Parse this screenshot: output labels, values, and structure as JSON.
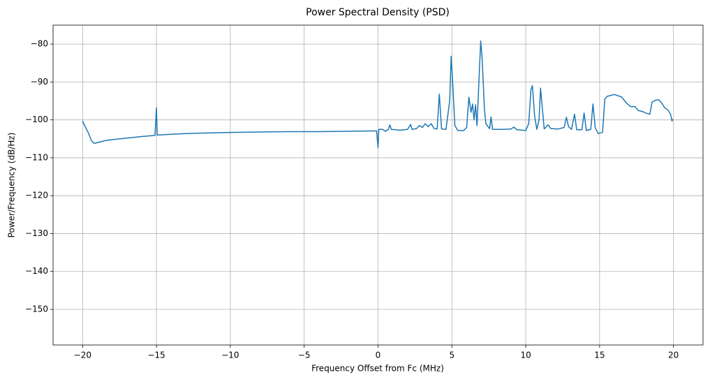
{
  "chart_data": {
    "type": "line",
    "title": "Power Spectral Density (PSD)",
    "x_label": "Frequency Offset from Fc (MHz)",
    "y_label": "Power/Frequency (dB/Hz)",
    "color": "#1f77b4",
    "grid": true,
    "xlim": [
      -22,
      22
    ],
    "ylim": [
      -159.4,
      -75.0
    ],
    "xticks": [
      {
        "value": -20,
        "label": "−20"
      },
      {
        "value": -15,
        "label": "−15"
      },
      {
        "value": -10,
        "label": "−10"
      },
      {
        "value": -5,
        "label": "−5"
      },
      0,
      5,
      10,
      15,
      20
    ],
    "yticks": [
      {
        "value": -80,
        "label": "−80"
      },
      {
        "value": -90,
        "label": "−90"
      },
      {
        "value": -100,
        "label": "−100"
      },
      {
        "value": -110,
        "label": "−110"
      },
      {
        "value": -120,
        "label": "−120"
      },
      {
        "value": -130,
        "label": "−130"
      },
      {
        "value": -140,
        "label": "−140"
      },
      {
        "value": -150,
        "label": "−150"
      }
    ],
    "x": [
      -20,
      -19.8,
      -19.6,
      -19.4,
      -19.2,
      -19,
      -18.5,
      -18,
      -17,
      -16,
      -15.1,
      -15.0,
      -14.95,
      -14,
      -13,
      -12,
      -10,
      -8,
      -6,
      -4,
      -2,
      -0.1,
      0,
      0.05,
      0.3,
      0.5,
      0.7,
      0.8,
      0.9,
      1.5,
      2.0,
      2.2,
      2.3,
      2.6,
      2.8,
      3.0,
      3.2,
      3.4,
      3.6,
      3.8,
      4.0,
      4.15,
      4.3,
      4.6,
      4.85,
      4.95,
      5.05,
      5.2,
      5.4,
      5.8,
      6.0,
      6.15,
      6.3,
      6.4,
      6.5,
      6.6,
      6.7,
      6.85,
      6.95,
      7.05,
      7.2,
      7.3,
      7.45,
      7.55,
      7.65,
      7.75,
      8.5,
      9.0,
      9.2,
      9.4,
      10,
      10.2,
      10.35,
      10.45,
      10.6,
      10.75,
      10.9,
      11.0,
      11.1,
      11.25,
      11.5,
      11.7,
      12.2,
      12.6,
      12.75,
      12.9,
      13.1,
      13.3,
      13.45,
      13.8,
      13.95,
      14.1,
      14.4,
      14.55,
      14.7,
      14.9,
      15.2,
      15.35,
      15.5,
      15.8,
      16,
      16.3,
      16.5,
      16.8,
      17.1,
      17.4,
      17.6,
      17.9,
      18.2,
      18.4,
      18.55,
      18.8,
      19.0,
      19.2,
      19.4,
      19.6,
      19.8,
      19.9,
      19.95
    ],
    "values": [
      -100.3,
      -102,
      -103.5,
      -105.5,
      -106.2,
      -106,
      -105.5,
      -105.2,
      -104.8,
      -104.4,
      -104.1,
      -96.8,
      -104,
      -103.8,
      -103.6,
      -103.5,
      -103.3,
      -103.2,
      -103.1,
      -103.1,
      -103.0,
      -102.9,
      -107.3,
      -102.5,
      -102.5,
      -103,
      -102.5,
      -101.3,
      -102.5,
      -102.7,
      -102.5,
      -101.2,
      -102.5,
      -102.3,
      -101.5,
      -102,
      -101,
      -101.8,
      -101,
      -102.3,
      -102.4,
      -93.2,
      -102.4,
      -102.5,
      -95,
      -83.2,
      -90,
      -101.5,
      -102.8,
      -102.8,
      -102,
      -94,
      -98,
      -95.8,
      -100,
      -96,
      -101.5,
      -88,
      -79.2,
      -84,
      -97,
      -101,
      -101.8,
      -102.3,
      -99.2,
      -102.5,
      -102.5,
      -102.4,
      -101.9,
      -102.6,
      -102.8,
      -101,
      -92,
      -91,
      -99,
      -102.5,
      -100,
      -91.6,
      -96,
      -102.4,
      -101.3,
      -102.3,
      -102.4,
      -102,
      -99.3,
      -101.8,
      -102.5,
      -98.5,
      -102.6,
      -102.6,
      -98.2,
      -102.8,
      -102.5,
      -95.8,
      -102,
      -103.6,
      -103.3,
      -94.5,
      -93.8,
      -93.5,
      -93.3,
      -93.7,
      -94,
      -95.5,
      -96.5,
      -96.5,
      -97.5,
      -97.8,
      -98.3,
      -98.5,
      -95.3,
      -94.8,
      -94.7,
      -95.5,
      -96.8,
      -97.3,
      -98.5,
      -100.3,
      -99.8
    ]
  }
}
